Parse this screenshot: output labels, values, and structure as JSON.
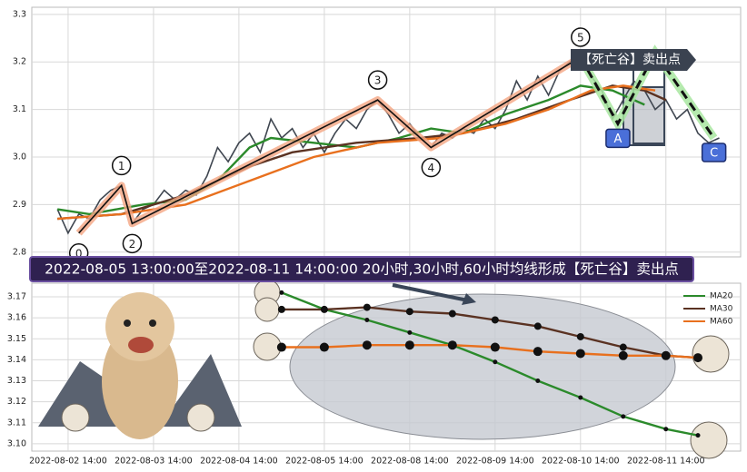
{
  "chart_data": [
    {
      "type": "line",
      "xlim": [
        -0.4,
        66
      ],
      "ylim": [
        2.79,
        3.315
      ],
      "xticks": [
        3,
        11,
        19,
        27,
        35,
        43,
        51,
        59
      ],
      "yticks": [
        2.8,
        2.9,
        {
          "value": 3,
          "label": "3.0"
        },
        3.1,
        3.2,
        3.3
      ],
      "grid": true,
      "series": [
        {
          "color": "#3f4650",
          "x": [
            2,
            3,
            4,
            5,
            6,
            7,
            8,
            9,
            10,
            11,
            12,
            13,
            14,
            15,
            16,
            17,
            18,
            19,
            20,
            21,
            22,
            23,
            24,
            25,
            26,
            27,
            28,
            29,
            30,
            31,
            32,
            33,
            34,
            35,
            36,
            37,
            38,
            39,
            40,
            41,
            42,
            43,
            44,
            45,
            46,
            47,
            48,
            49,
            50,
            51,
            52,
            53,
            54,
            55,
            56,
            57,
            58,
            59,
            60,
            61,
            62,
            63,
            64
          ],
          "values": [
            2.89,
            2.84,
            2.88,
            2.87,
            2.91,
            2.93,
            2.94,
            2.86,
            2.89,
            2.9,
            2.93,
            2.91,
            2.93,
            2.92,
            2.96,
            3.02,
            2.99,
            3.03,
            3.05,
            3.01,
            3.08,
            3.04,
            3.06,
            3.02,
            3.05,
            3.01,
            3.05,
            3.08,
            3.06,
            3.1,
            3.12,
            3.09,
            3.05,
            3.07,
            3.04,
            3.02,
            3.05,
            3.04,
            3.06,
            3.05,
            3.08,
            3.06,
            3.1,
            3.16,
            3.12,
            3.17,
            3.13,
            3.18,
            3.2,
            3.21,
            3.17,
            3.14,
            3.08,
            3.12,
            3.16,
            3.14,
            3.1,
            3.12,
            3.08,
            3.1,
            3.05,
            3.03,
            3.04
          ]
        },
        {
          "color": "#2b8a2b",
          "x": [
            2,
            5,
            10,
            14,
            17,
            20,
            22,
            26,
            30,
            34,
            37,
            40,
            44,
            48,
            51,
            54,
            57
          ],
          "values": [
            2.89,
            2.88,
            2.9,
            2.91,
            2.95,
            3.02,
            3.04,
            3.03,
            3.02,
            3.04,
            3.06,
            3.05,
            3.09,
            3.12,
            3.15,
            3.14,
            3.11
          ]
        },
        {
          "color": "#5a3222",
          "x": [
            2,
            8,
            14,
            20,
            24,
            30,
            36,
            40,
            45,
            50,
            54,
            57,
            59
          ],
          "values": [
            2.87,
            2.88,
            2.92,
            2.98,
            3.01,
            3.03,
            3.04,
            3.05,
            3.08,
            3.12,
            3.15,
            3.14,
            3.12
          ]
        },
        {
          "color": "#e8701e",
          "x": [
            2,
            8,
            14,
            20,
            26,
            32,
            38,
            44,
            48,
            52,
            55,
            58
          ],
          "values": [
            2.87,
            2.88,
            2.9,
            2.95,
            3.0,
            3.03,
            3.04,
            3.07,
            3.1,
            3.14,
            3.15,
            3.14
          ]
        }
      ],
      "waves": {
        "x": [
          4,
          8,
          9,
          32,
          37,
          51
        ],
        "values": [
          2.84,
          2.94,
          2.86,
          3.12,
          3.02,
          3.21
        ],
        "labels": [
          "0",
          "1",
          "2",
          "3",
          "4",
          "5"
        ]
      },
      "abc": {
        "x": [
          51,
          54.5,
          58,
          63.5
        ],
        "values": [
          3.21,
          3.07,
          3.22,
          3.04
        ],
        "labels": [
          null,
          "A",
          null,
          "C"
        ]
      },
      "annotation": "【死亡谷】卖出点",
      "banner": "2022-08-05 13:00:00至2022-08-11 14:00:00 20小时,30小时,60小时均线形成【死亡谷】卖出点"
    },
    {
      "type": "line",
      "xlim": [
        -0.4,
        66
      ],
      "ylim": [
        3.0965,
        3.1765
      ],
      "xticks": [
        {
          "value": 3,
          "label": "2022-08-02 14:00"
        },
        {
          "value": 11,
          "label": "2022-08-03 14:00"
        },
        {
          "value": 19,
          "label": "2022-08-04 14:00"
        },
        {
          "value": 27,
          "label": "2022-08-05 14:00"
        },
        {
          "value": 35,
          "label": "2022-08-08 14:00"
        },
        {
          "value": 43,
          "label": "2022-08-09 14:00"
        },
        {
          "value": 51,
          "label": "2022-08-10 14:00"
        },
        {
          "value": 59,
          "label": "2022-08-11 14:00"
        }
      ],
      "yticks": [
        {
          "value": 3.1,
          "label": "3.10"
        },
        3.11,
        3.12,
        3.13,
        3.14,
        3.15,
        3.16,
        3.17
      ],
      "grid": true,
      "series": [
        {
          "name": "MA20",
          "color": "#2b8a2b",
          "x": [
            23,
            27,
            31,
            35,
            39,
            43,
            47,
            51,
            55,
            59,
            62
          ],
          "values": [
            3.172,
            3.164,
            3.159,
            3.153,
            3.147,
            3.139,
            3.13,
            3.122,
            3.113,
            3.107,
            3.104
          ]
        },
        {
          "name": "MA30",
          "color": "#5a3222",
          "x": [
            23,
            27,
            31,
            35,
            39,
            43,
            47,
            51,
            55,
            59,
            62
          ],
          "values": [
            3.164,
            3.164,
            3.165,
            3.163,
            3.162,
            3.159,
            3.156,
            3.151,
            3.146,
            3.142,
            3.141
          ]
        },
        {
          "name": "MA60",
          "color": "#e8701e",
          "x": [
            23,
            27,
            31,
            35,
            39,
            43,
            47,
            51,
            55,
            59,
            62
          ],
          "values": [
            3.146,
            3.146,
            3.147,
            3.147,
            3.147,
            3.146,
            3.144,
            3.143,
            3.142,
            3.142,
            3.141
          ]
        }
      ]
    }
  ]
}
